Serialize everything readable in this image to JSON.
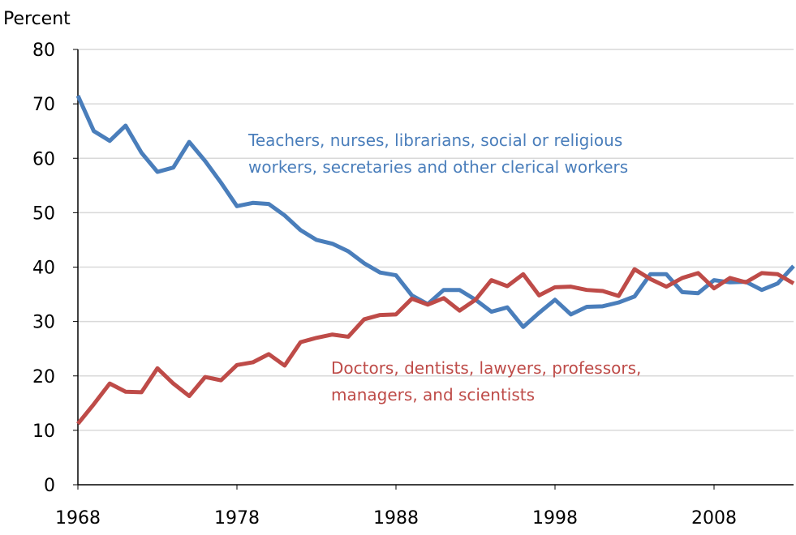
{
  "chart_data": {
    "type": "line",
    "y_label": "Percent",
    "x": [
      1968,
      1969,
      1970,
      1971,
      1972,
      1973,
      1974,
      1975,
      1976,
      1977,
      1978,
      1979,
      1980,
      1981,
      1982,
      1983,
      1984,
      1985,
      1986,
      1987,
      1988,
      1989,
      1990,
      1991,
      1992,
      1993,
      1994,
      1995,
      1996,
      1997,
      1998,
      1999,
      2000,
      2001,
      2002,
      2003,
      2004,
      2005,
      2006,
      2007,
      2008,
      2009,
      2010,
      2011,
      2012,
      2013
    ],
    "xlim": [
      1968,
      2013
    ],
    "xticks": [
      1968,
      1978,
      1988,
      1998,
      2008
    ],
    "ylim": [
      0,
      80
    ],
    "yticks": [
      0,
      10,
      20,
      30,
      40,
      50,
      60,
      70,
      80
    ],
    "grid": true,
    "series": [
      {
        "label_lines": [
          "Teachers, nurses, librarians, social or religious",
          "workers, secretaries and other clerical workers"
        ],
        "color": "#4a7ebb",
        "values": [
          71.5,
          65,
          63.2,
          66,
          61,
          57.5,
          58.3,
          63,
          59.5,
          55.5,
          51.2,
          51.8,
          51.6,
          49.5,
          46.8,
          45,
          44.3,
          42.9,
          40.7,
          39,
          38.5,
          34.8,
          33.2,
          35.8,
          35.8,
          34,
          31.8,
          32.6,
          29,
          31.6,
          34,
          31.3,
          32.7,
          32.8,
          33.5,
          34.6,
          38.7,
          38.7,
          35.4,
          35.2,
          37.6,
          37.2,
          37.3,
          35.8,
          37,
          40.2
        ]
      },
      {
        "label_lines": [
          "Doctors, dentists, lawyers, professors,",
          "managers, and scientists"
        ],
        "color": "#be4b48",
        "values": [
          11.2,
          14.8,
          18.6,
          17.1,
          17,
          21.4,
          18.6,
          16.3,
          19.8,
          19.2,
          22,
          22.5,
          24,
          21.9,
          26.2,
          27,
          27.6,
          27.2,
          30.4,
          31.2,
          31.3,
          34.2,
          33.1,
          34.3,
          32,
          34,
          37.6,
          36.5,
          38.7,
          34.8,
          36.3,
          36.4,
          35.8,
          35.6,
          34.7,
          39.6,
          37.8,
          36.4,
          38,
          38.9,
          36.1,
          38,
          37.2,
          38.9,
          38.7,
          37
        ]
      }
    ]
  }
}
